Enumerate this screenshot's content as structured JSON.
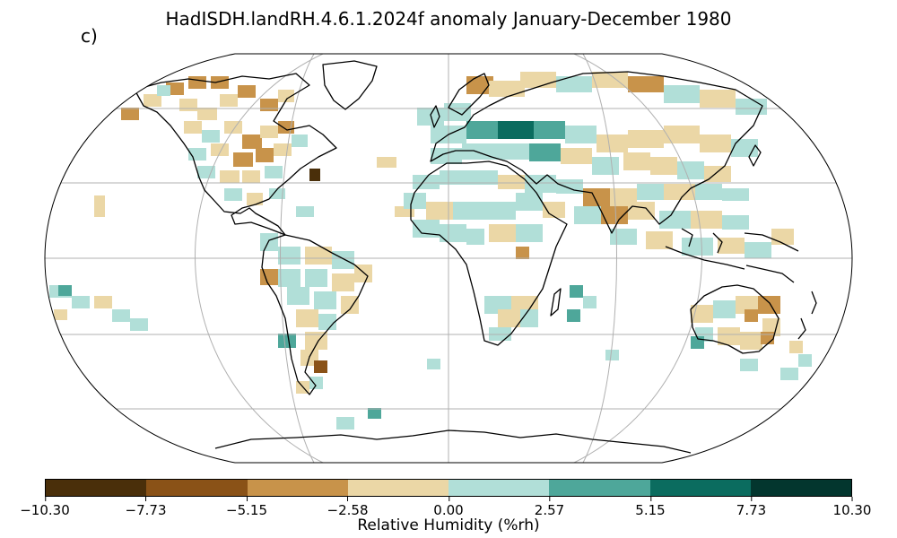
{
  "title": "HadISDH.landRH.4.6.1.2024f anomaly January-December 1980",
  "panel_label": "c)",
  "colorbar": {
    "label": "Relative Humidity (%rh)",
    "ticks": [
      "−10.30",
      "−7.73",
      "−5.15",
      "−2.58",
      "0.00",
      "2.57",
      "5.15",
      "7.73",
      "10.30"
    ],
    "colors": [
      "#4a2f0a",
      "#8a5217",
      "#c8934a",
      "#ebd7a6",
      "#b1dfd8",
      "#4ea79a",
      "#0b6c5f",
      "#03362e"
    ]
  },
  "map": {
    "projection": "Robinson",
    "coastline_color": "#000000",
    "gridline_color": "#b0b0b0"
  }
}
